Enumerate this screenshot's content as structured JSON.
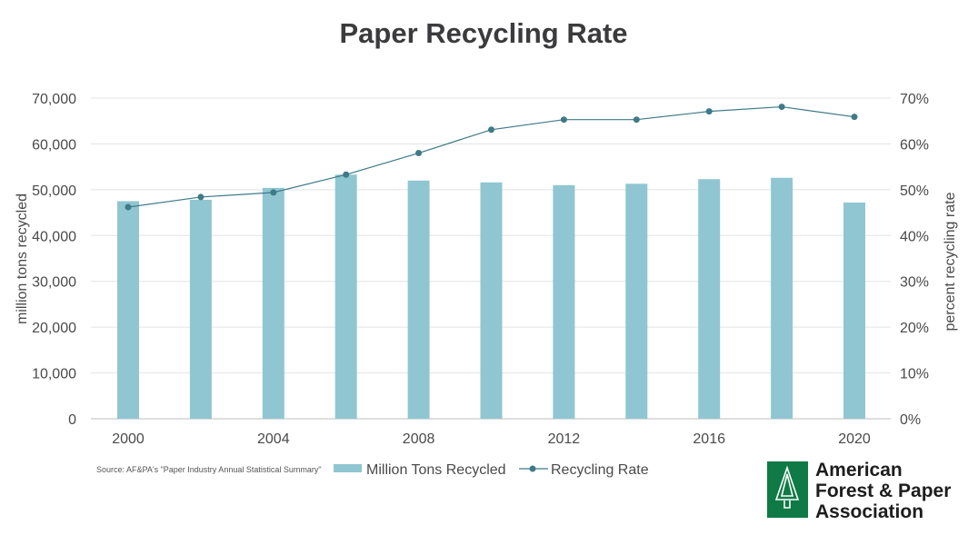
{
  "chart_data": {
    "type": "bar",
    "title": "Paper Recycling Rate",
    "ylabel": "million tons recycled",
    "y2label": "percent recycling rate",
    "x": [
      2000,
      2002,
      2004,
      2006,
      2008,
      2010,
      2012,
      2014,
      2016,
      2018,
      2020
    ],
    "xticks": [
      "2000",
      "2004",
      "2008",
      "2012",
      "2016",
      "2020"
    ],
    "yticks": [
      "0",
      "10,000",
      "20,000",
      "30,000",
      "40,000",
      "50,000",
      "60,000",
      "70,000"
    ],
    "y2ticks": [
      "0%",
      "10%",
      "20%",
      "30%",
      "40%",
      "50%",
      "60%",
      "70%"
    ],
    "ylim": [
      0,
      70000
    ],
    "y2lim": [
      0,
      70
    ],
    "grid": true,
    "legend_position": "bottom",
    "series": [
      {
        "name": "Million Tons Recycled",
        "type": "bar",
        "axis": "left",
        "color": "#8fc6d1",
        "values": [
          47500,
          47800,
          50400,
          53300,
          52000,
          51600,
          51000,
          51300,
          52300,
          52600,
          47200
        ]
      },
      {
        "name": "Recycling Rate",
        "type": "line",
        "axis": "right",
        "color": "#3e7a88",
        "values": [
          46.2,
          48.4,
          49.4,
          53.3,
          58.0,
          63.1,
          65.3,
          65.3,
          67.1,
          68.1,
          65.9
        ]
      }
    ]
  },
  "source_note": "Source: AF&PA's \"Paper Industry Annual Statistical Summary\"",
  "logo": {
    "lines": [
      "American",
      "Forest & Paper",
      "Association"
    ],
    "color": "#0f7a45"
  }
}
